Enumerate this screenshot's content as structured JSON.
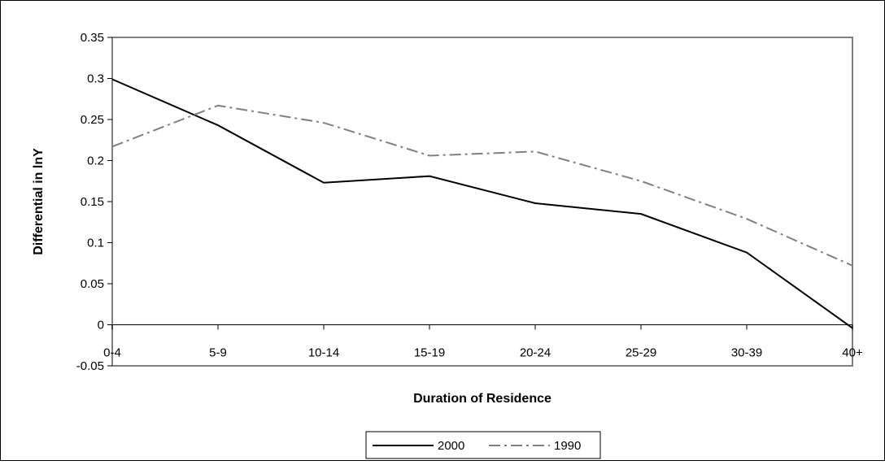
{
  "chart_data": {
    "type": "line",
    "title": "",
    "xlabel": "Duration of Residence",
    "ylabel": "Differential in lnY",
    "categories": [
      "0-4",
      "5-9",
      "10-14",
      "15-19",
      "20-24",
      "25-29",
      "30-39",
      "40+"
    ],
    "y_ticks": [
      "0.35",
      "0.3",
      "0.25",
      "0.2",
      "0.15",
      "0.1",
      "0.05",
      "0",
      "-0.05"
    ],
    "ylim": [
      -0.05,
      0.35
    ],
    "grid": false,
    "legend_position": "bottom",
    "series": [
      {
        "name": "2000",
        "values": [
          0.299,
          0.243,
          0.173,
          0.181,
          0.148,
          0.135,
          0.088,
          -0.004
        ],
        "color": "#000000",
        "dash": "solid"
      },
      {
        "name": "1990",
        "values": [
          0.217,
          0.267,
          0.246,
          0.206,
          0.211,
          0.175,
          0.129,
          0.072
        ],
        "color": "#808080",
        "dash": "dash-dot"
      }
    ]
  }
}
